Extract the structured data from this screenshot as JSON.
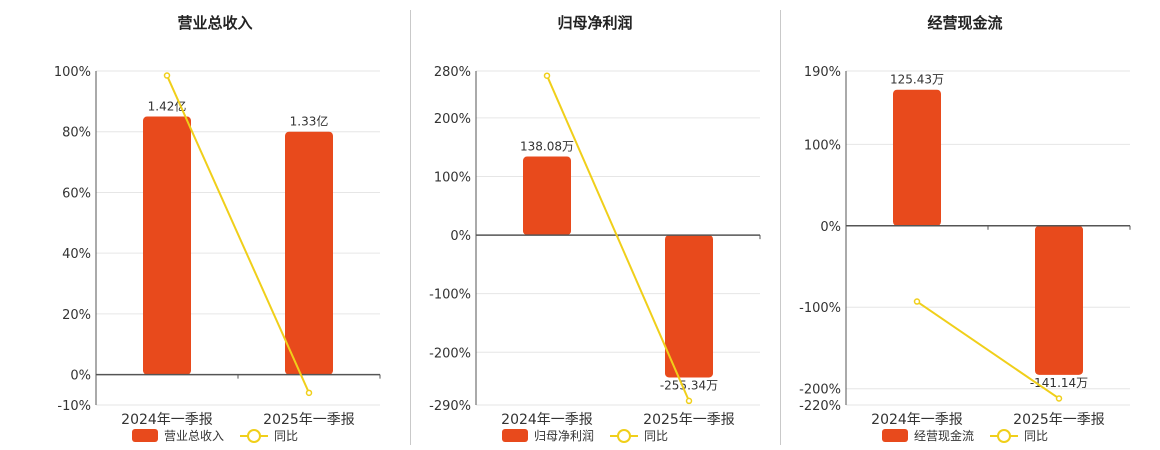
{
  "colors": {
    "bar": "#e84a1c",
    "line": "#f0cf1a",
    "grid": "#e6e6e6",
    "axis": "#555555"
  },
  "legend_line_label": "同比",
  "chart_data": [
    {
      "type": "bar",
      "title": "营业总收入",
      "categories": [
        "2024年一季报",
        "2025年一季报"
      ],
      "bar_values": [
        85,
        80
      ],
      "bar_labels": [
        "1.42亿",
        "1.33亿"
      ],
      "line_values": [
        98.5,
        -6
      ],
      "ylim": [
        -10,
        100
      ],
      "ticks": [
        100,
        80,
        60,
        40,
        20,
        0,
        -10
      ],
      "tick_labels": [
        "100%",
        "80%",
        "60%",
        "40%",
        "20%",
        "0%",
        "-10%"
      ],
      "series": [
        {
          "name": "营业总收入"
        },
        {
          "name": "同比"
        }
      ]
    },
    {
      "type": "bar",
      "title": "归母净利润",
      "categories": [
        "2024年一季报",
        "2025年一季报"
      ],
      "bar_values": [
        134,
        -243
      ],
      "bar_labels": [
        "138.08万",
        "-255.34万"
      ],
      "line_values": [
        272,
        -283
      ],
      "ylim": [
        -290,
        280
      ],
      "ticks": [
        280,
        200,
        100,
        0,
        -100,
        -200,
        -290
      ],
      "tick_labels": [
        "280%",
        "200%",
        "100%",
        "0%",
        "-100%",
        "-200%",
        "-290%"
      ],
      "series": [
        {
          "name": "归母净利润"
        },
        {
          "name": "同比"
        }
      ]
    },
    {
      "type": "bar",
      "title": "经营现金流",
      "categories": [
        "2024年一季报",
        "2025年一季报"
      ],
      "bar_values": [
        167,
        -183
      ],
      "bar_labels": [
        "125.43万",
        "-141.14万"
      ],
      "line_values": [
        -93,
        -212
      ],
      "ylim": [
        -220,
        190
      ],
      "ticks": [
        190,
        100,
        0,
        -100,
        -200,
        -220
      ],
      "tick_labels": [
        "190%",
        "100%",
        "0%",
        "-100%",
        "-200%",
        "-220%"
      ],
      "series": [
        {
          "name": "经营现金流"
        },
        {
          "name": "同比"
        }
      ]
    }
  ]
}
